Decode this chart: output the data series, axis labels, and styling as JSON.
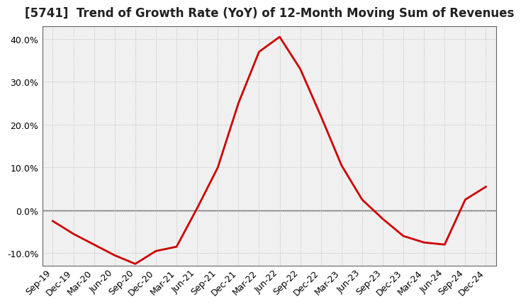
{
  "title": "[5741]  Trend of Growth Rate (YoY) of 12-Month Moving Sum of Revenues",
  "title_fontsize": 12,
  "line_color": "#cc0000",
  "background_color": "#ffffff",
  "plot_bg_color": "#f0f0f0",
  "grid_color": "#bbbbbb",
  "x_labels": [
    "Sep-19",
    "Dec-19",
    "Mar-20",
    "Jun-20",
    "Sep-20",
    "Dec-20",
    "Mar-21",
    "Jun-21",
    "Sep-21",
    "Dec-21",
    "Mar-22",
    "Jun-22",
    "Sep-22",
    "Dec-22",
    "Mar-23",
    "Jun-23",
    "Sep-23",
    "Dec-23",
    "Mar-24",
    "Jun-24",
    "Sep-24",
    "Dec-24"
  ],
  "y_values": [
    -2.5,
    -5.5,
    -8.0,
    -10.5,
    -12.5,
    -9.5,
    -8.5,
    0.5,
    10.0,
    25.0,
    37.0,
    40.5,
    33.0,
    22.0,
    10.5,
    2.5,
    -2.0,
    -6.0,
    -7.5,
    -8.0,
    2.5,
    5.5
  ],
  "ylim": [
    -13,
    43
  ],
  "yticks": [
    -10.0,
    0.0,
    10.0,
    20.0,
    30.0,
    40.0
  ],
  "tick_fontsize": 9,
  "spine_color": "#666666",
  "zero_line_color": "#555555"
}
